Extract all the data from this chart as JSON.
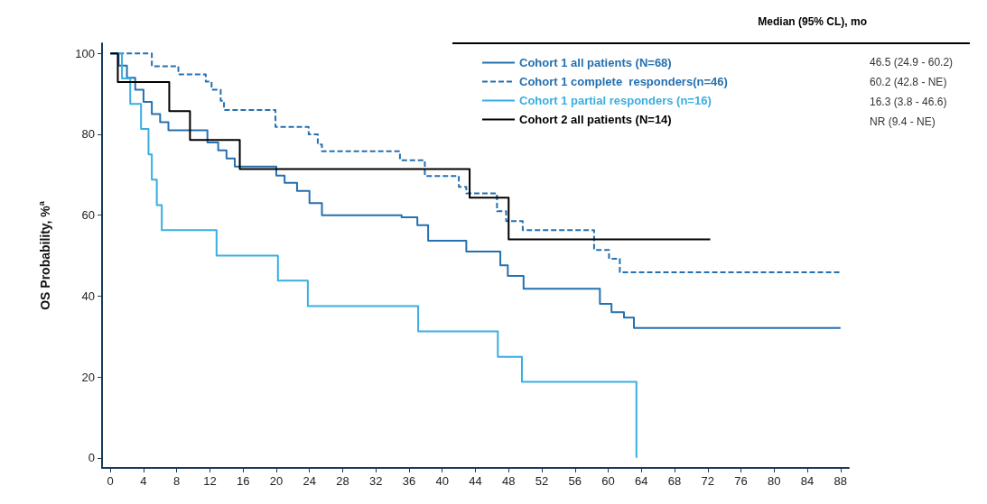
{
  "chart_data": {
    "type": "step",
    "ylabel": "OS Probability, %$^{a}$",
    "legend": "top right",
    "grid": false,
    "xlim": [
      -1,
      89
    ],
    "xticks": [
      0,
      4,
      8,
      12,
      16,
      20,
      24,
      28,
      32,
      36,
      40,
      44,
      48,
      52,
      56,
      60,
      64,
      68,
      72,
      76,
      80,
      84,
      88
    ],
    "ylim": [
      -2.5,
      102.5
    ],
    "yticks": [
      0,
      20,
      40,
      60,
      80,
      100
    ],
    "annotations": [
      "Median (95% CL), mo",
      "46.5 (24.9 - 60.2)",
      "60.2 (42.8 - NE)",
      "16.3 (3.8 - 46.6)",
      "NR (9.4 - NE)"
    ],
    "series": [
      {
        "name": "Cohort 1 all patients (N=68)",
        "color": "#2470b0",
        "line_style": "solid",
        "x": [
          0,
          1,
          2,
          3,
          4,
          5,
          6,
          7,
          11.7,
          13,
          14,
          15,
          20,
          21,
          22.5,
          24,
          25.5,
          35.1,
          37,
          38.3,
          42.9,
          47,
          47.9,
          49.8,
          59,
          60.4,
          61.9,
          63.1,
          88
        ],
        "values": [
          100,
          97,
          94,
          91,
          88,
          85,
          83,
          81,
          78,
          76,
          74,
          72,
          69.8,
          68,
          66,
          63,
          60,
          59.5,
          57.5,
          53.7,
          51,
          47.6,
          45,
          41.8,
          38.1,
          36,
          34.7,
          32.1,
          32.1
        ]
      },
      {
        "name": "Cohort 1 complete  responders(n=46)",
        "color": "#2470b0",
        "line_style": "dashed",
        "x": [
          0,
          5,
          8.2,
          11.5,
          12.2,
          13.3,
          13.7,
          19.9,
          23.9,
          25,
          25.5,
          34.9,
          37.9,
          42,
          42.9,
          46.6,
          47.7,
          49.7,
          58.3,
          60.1,
          61.4,
          88
        ],
        "values": [
          100,
          96.8,
          94.8,
          93,
          91,
          88.3,
          86,
          81.8,
          80,
          77.5,
          75.8,
          73.6,
          69.7,
          67,
          65.4,
          61,
          58.5,
          56.3,
          51.4,
          49.2,
          45.9,
          45.9
        ]
      },
      {
        "name": "Cohort 1 partial responders (n=16)",
        "color": "#3aaee0",
        "line_style": "solid",
        "x": [
          0,
          1.4,
          2.4,
          3.7,
          4.6,
          5,
          5.6,
          6.2,
          12.8,
          20.2,
          23.8,
          37.1,
          46.7,
          49.6,
          63.4
        ],
        "values": [
          100,
          93.8,
          87.5,
          81.3,
          75,
          68.8,
          62.5,
          56.3,
          50,
          43.8,
          37.5,
          31.3,
          25,
          18.8,
          0
        ]
      },
      {
        "name": "Cohort 2 all patients (N=14)",
        "color": "#000000",
        "line_style": "solid",
        "x": [
          0,
          0.9,
          7.1,
          9.6,
          15.6,
          43.3,
          48,
          72.3
        ],
        "values": [
          100,
          92.9,
          85.7,
          78.6,
          71.4,
          64.3,
          54,
          54
        ]
      }
    ]
  }
}
